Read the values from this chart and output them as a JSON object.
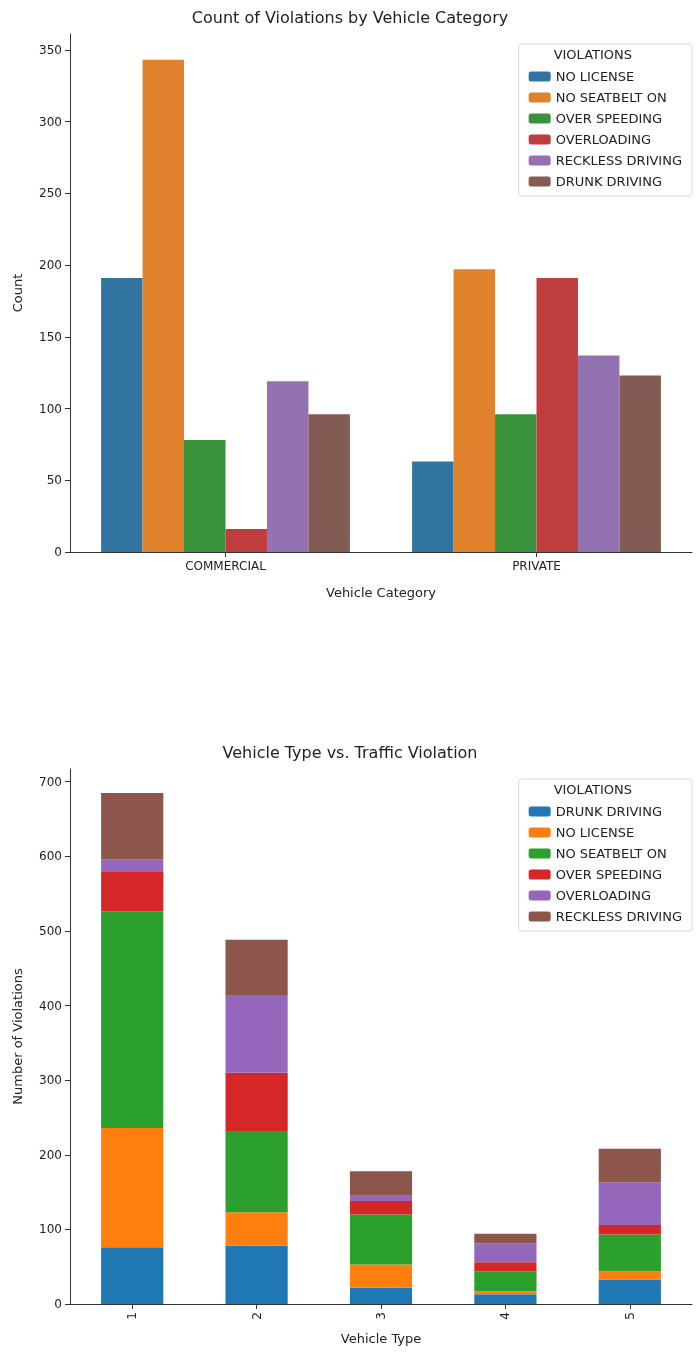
{
  "chart_data": [
    {
      "type": "bar",
      "title": "Count of Violations by Vehicle Category",
      "xlabel": "Vehicle Category",
      "ylabel": "Count",
      "legend_title": "VIOLATIONS",
      "legend": "top right",
      "grid": false,
      "categories": [
        "COMMERCIAL",
        "PRIVATE"
      ],
      "ylim": [
        0,
        361
      ],
      "yticks": [
        0,
        50,
        100,
        150,
        200,
        250,
        300,
        350
      ],
      "series": [
        {
          "name": "NO LICENSE",
          "color": "#3274a1",
          "values": [
            191,
            63
          ]
        },
        {
          "name": "NO SEATBELT ON",
          "color": "#e1812c",
          "values": [
            343,
            197
          ]
        },
        {
          "name": "OVER SPEEDING",
          "color": "#3a923a",
          "values": [
            78,
            96
          ]
        },
        {
          "name": "OVERLOADING",
          "color": "#c03d3e",
          "values": [
            16,
            191
          ]
        },
        {
          "name": "RECKLESS DRIVING",
          "color": "#9372b2",
          "values": [
            119,
            137
          ]
        },
        {
          "name": "DRUNK DRIVING",
          "color": "#845b53",
          "values": [
            96,
            123
          ]
        }
      ]
    },
    {
      "type": "bar",
      "stacked": true,
      "title": "Vehicle Type vs. Traffic Violation",
      "xlabel": "Vehicle Type",
      "ylabel": "Number of Violations",
      "legend_title": "VIOLATIONS",
      "legend": "top right",
      "grid": false,
      "categories": [
        "1",
        "2",
        "3",
        "4",
        "5"
      ],
      "ylim": [
        0,
        717
      ],
      "yticks": [
        0,
        100,
        200,
        300,
        400,
        500,
        600,
        700
      ],
      "series": [
        {
          "name": "DRUNK DRIVING",
          "color": "#1f77b4",
          "values": [
            76,
            78,
            22,
            13,
            33
          ]
        },
        {
          "name": "NO LICENSE",
          "color": "#ff7f0e",
          "values": [
            160,
            45,
            31,
            4,
            11
          ]
        },
        {
          "name": "NO SEATBELT ON",
          "color": "#2ca02c",
          "values": [
            290,
            109,
            67,
            27,
            49
          ]
        },
        {
          "name": "OVER SPEEDING",
          "color": "#d62728",
          "values": [
            53,
            78,
            18,
            12,
            13
          ]
        },
        {
          "name": "OVERLOADING",
          "color": "#9467bd",
          "values": [
            17,
            104,
            7,
            25,
            57
          ]
        },
        {
          "name": "RECKLESS DRIVING",
          "color": "#8c564b",
          "values": [
            89,
            74,
            33,
            13,
            45
          ]
        }
      ]
    }
  ]
}
